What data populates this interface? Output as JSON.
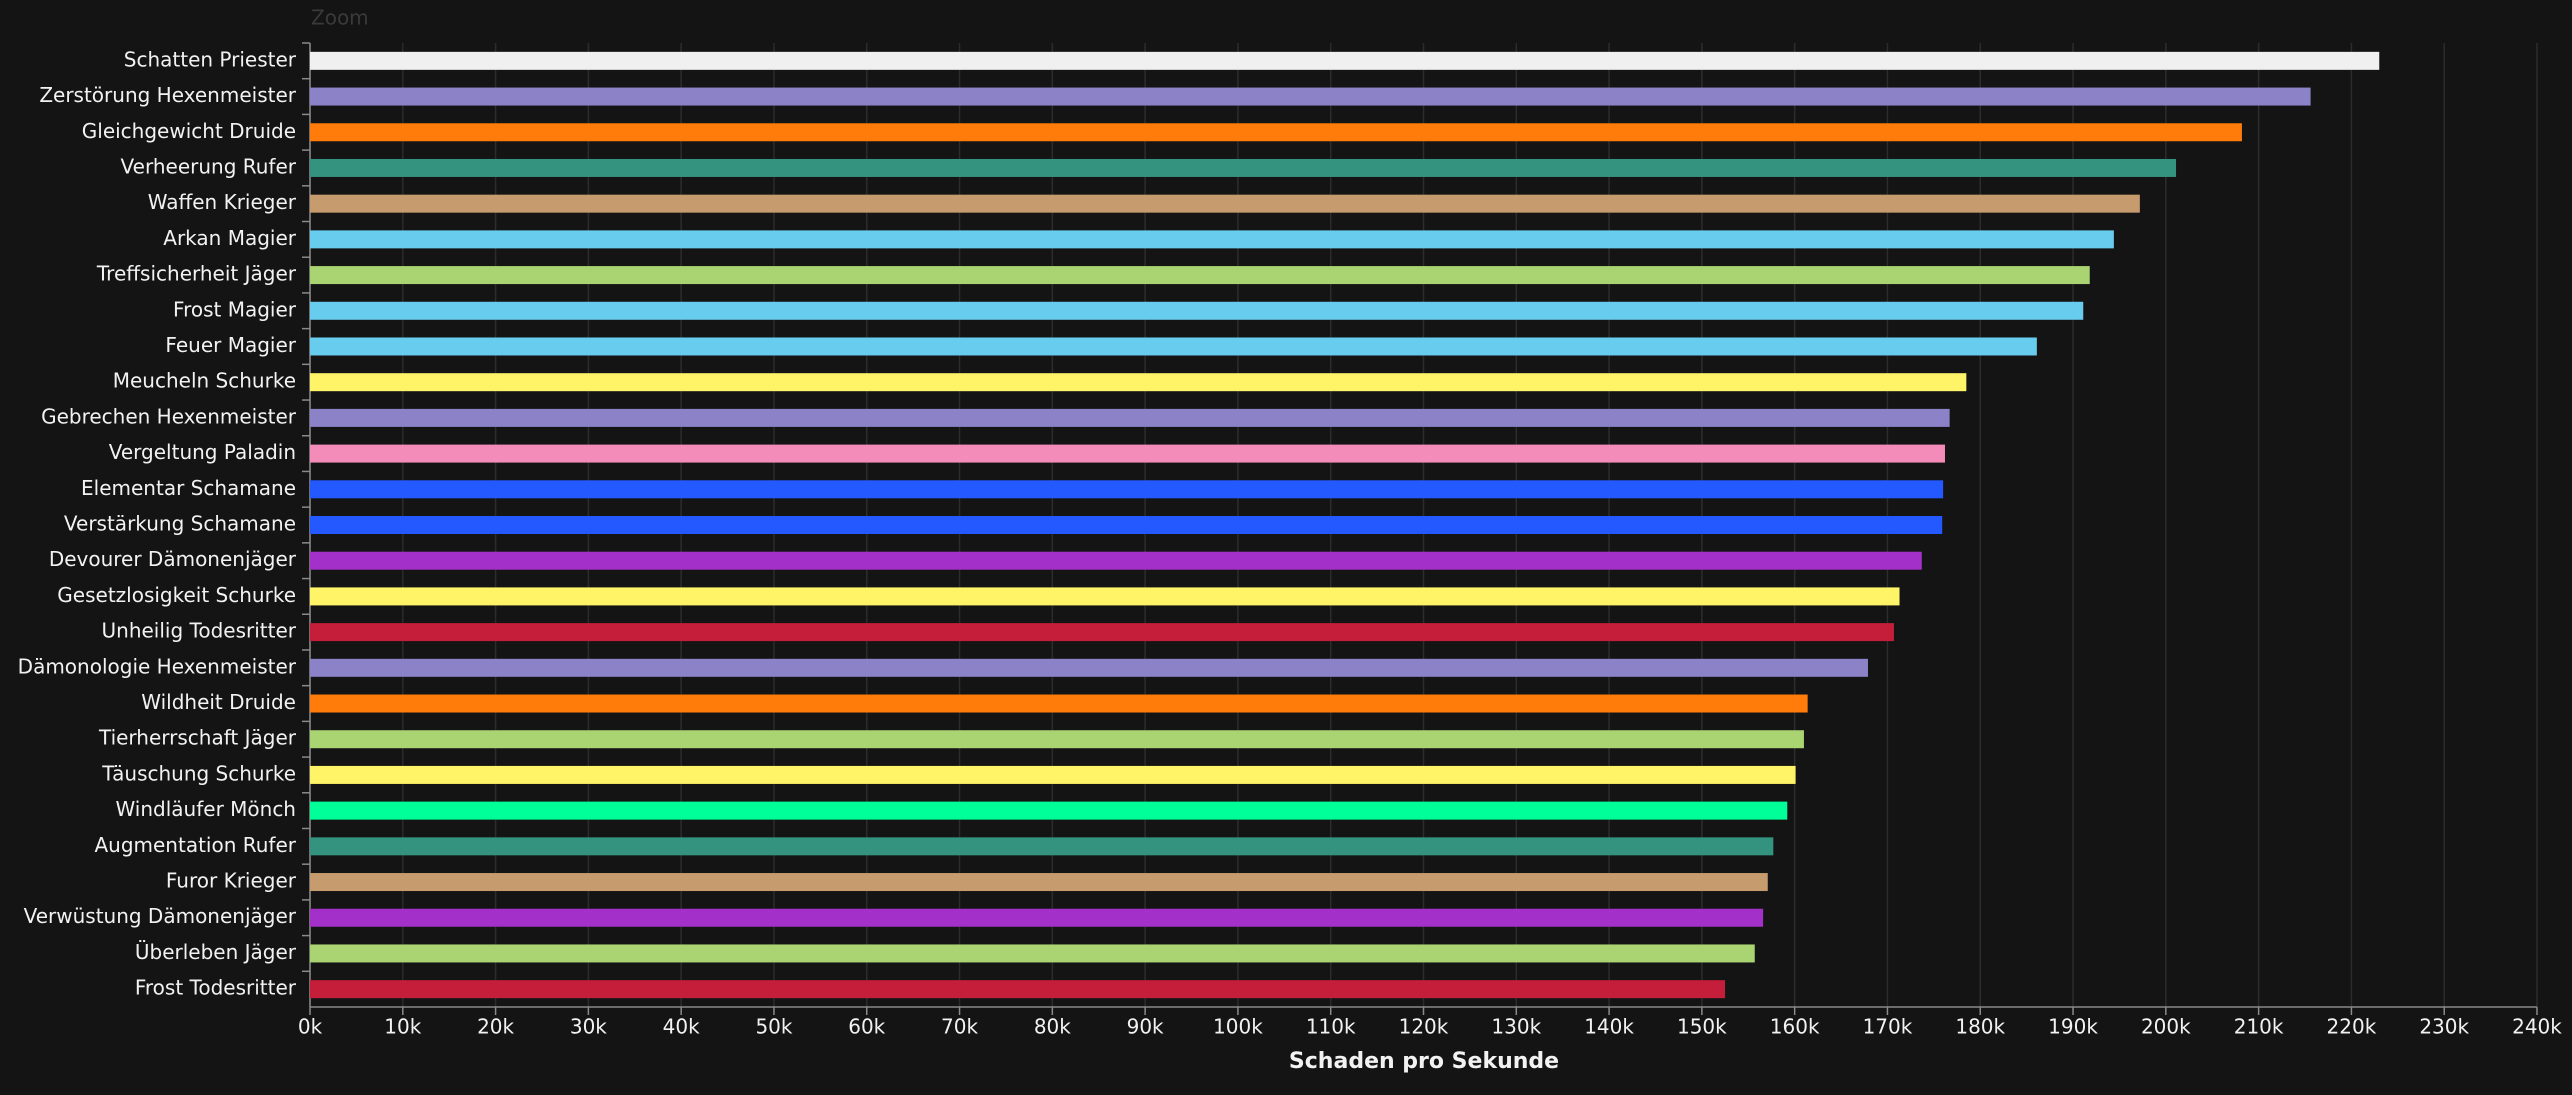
{
  "chart_data": {
    "type": "bar",
    "orientation": "horizontal",
    "annotations": [
      "Zoom"
    ],
    "xlabel": "Schaden pro Sekunde",
    "categories": [
      "Schatten Priester",
      "Zerstörung Hexenmeister",
      "Gleichgewicht Druide",
      "Verheerung Rufer",
      "Waffen Krieger",
      "Arkan Magier",
      "Treffsicherheit Jäger",
      "Frost Magier",
      "Feuer Magier",
      "Meucheln Schurke",
      "Gebrechen Hexenmeister",
      "Vergeltung Paladin",
      "Elementar Schamane",
      "Verstärkung Schamane",
      "Devourer Dämonenjäger",
      "Gesetzlosigkeit Schurke",
      "Unheilig Todesritter",
      "Dämonologie Hexenmeister",
      "Wildheit Druide",
      "Tierherrschaft Jäger",
      "Täuschung Schurke",
      "Windläufer Mönch",
      "Augmentation Rufer",
      "Furor Krieger",
      "Verwüstung Dämonenjäger",
      "Überleben Jäger",
      "Frost Todesritter"
    ],
    "values": [
      223000,
      215600,
      208200,
      201100,
      197200,
      194400,
      191800,
      191100,
      186100,
      178500,
      176700,
      176200,
      176000,
      175900,
      173700,
      171300,
      170700,
      167900,
      161400,
      161000,
      160100,
      159200,
      157700,
      157100,
      156600,
      155700,
      152500
    ],
    "colors": [
      "#f0f0f0",
      "#8b82c8",
      "#ff7c0a",
      "#33937f",
      "#c69b6d",
      "#68ccef",
      "#aad372",
      "#68ccef",
      "#68ccef",
      "#fff468",
      "#8b82c8",
      "#f48cba",
      "#2359ff",
      "#2359ff",
      "#a330c9",
      "#fff468",
      "#c41e3a",
      "#8b82c8",
      "#ff7c0a",
      "#aad372",
      "#fff468",
      "#00ff98",
      "#33937f",
      "#c69b6d",
      "#a330c9",
      "#aad372",
      "#c41e3a"
    ],
    "xlim": [
      0,
      240000
    ],
    "xticks": [
      {
        "value": 0,
        "label": "0k"
      },
      {
        "value": 10000,
        "label": "10k"
      },
      {
        "value": 20000,
        "label": "20k"
      },
      {
        "value": 30000,
        "label": "30k"
      },
      {
        "value": 40000,
        "label": "40k"
      },
      {
        "value": 50000,
        "label": "50k"
      },
      {
        "value": 60000,
        "label": "60k"
      },
      {
        "value": 70000,
        "label": "70k"
      },
      {
        "value": 80000,
        "label": "80k"
      },
      {
        "value": 90000,
        "label": "90k"
      },
      {
        "value": 100000,
        "label": "100k"
      },
      {
        "value": 110000,
        "label": "110k"
      },
      {
        "value": 120000,
        "label": "120k"
      },
      {
        "value": 130000,
        "label": "130k"
      },
      {
        "value": 140000,
        "label": "140k"
      },
      {
        "value": 150000,
        "label": "150k"
      },
      {
        "value": 160000,
        "label": "160k"
      },
      {
        "value": 170000,
        "label": "170k"
      },
      {
        "value": 180000,
        "label": "180k"
      },
      {
        "value": 190000,
        "label": "190k"
      },
      {
        "value": 200000,
        "label": "200k"
      },
      {
        "value": 210000,
        "label": "210k"
      },
      {
        "value": 220000,
        "label": "220k"
      },
      {
        "value": 230000,
        "label": "230k"
      },
      {
        "value": 240000,
        "label": "240k"
      }
    ],
    "grid": true
  }
}
